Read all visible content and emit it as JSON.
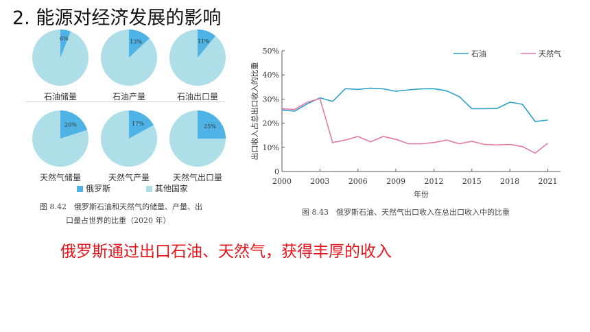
{
  "page_title": "2. 能源对经济发展的影响",
  "conclusion": "俄罗斯通过出口石油、天然气，获得丰厚的收入",
  "colors": {
    "russia": "#4eb3e4",
    "others": "#aedfe8",
    "oil": "#2aa0c8",
    "gas": "#e477a6",
    "conclusion_text": "#e8141c"
  },
  "pie_legend": {
    "russia": "俄罗斯",
    "others": "其他国家"
  },
  "pie_caption": {
    "line1": "图 8.42　俄罗斯石油和天然气的储量、产量、出",
    "line2": "口量占世界的比重（2020 年）"
  },
  "line_caption": "图 8.43　俄罗斯石油、天然气出口收入在总出口收入中的比重",
  "chart_data": [
    {
      "type": "pie",
      "label": "石油储量",
      "values": [
        6,
        94
      ],
      "slice_labels": [
        "6%",
        ""
      ]
    },
    {
      "type": "pie",
      "label": "石油产量",
      "values": [
        13,
        87
      ],
      "slice_labels": [
        "13%",
        ""
      ]
    },
    {
      "type": "pie",
      "label": "石油出口量",
      "values": [
        11,
        89
      ],
      "slice_labels": [
        "11%",
        ""
      ]
    },
    {
      "type": "pie",
      "label": "天然气储量",
      "values": [
        20,
        80
      ],
      "slice_labels": [
        "20%",
        ""
      ]
    },
    {
      "type": "pie",
      "label": "天然气产量",
      "values": [
        17,
        83
      ],
      "slice_labels": [
        "17%",
        ""
      ]
    },
    {
      "type": "pie",
      "label": "天然气出口量",
      "values": [
        25,
        75
      ],
      "slice_labels": [
        "25%",
        ""
      ]
    },
    {
      "type": "line",
      "xlabel": "年份",
      "ylabel": "出口收入占总出口收入的比重",
      "xlim": [
        2000,
        2022
      ],
      "ylim": [
        0,
        50
      ],
      "xticks": [
        2000,
        2003,
        2006,
        2009,
        2012,
        2015,
        2018,
        2021
      ],
      "yticks": [
        0,
        10,
        20,
        30,
        40,
        50
      ],
      "ytick_labels": [
        "0",
        "10%",
        "20%",
        "30%",
        "40%",
        "50%"
      ],
      "legend_position": "top-right",
      "x": [
        2000,
        2001,
        2002,
        2003,
        2004,
        2005,
        2006,
        2007,
        2008,
        2009,
        2010,
        2011,
        2012,
        2013,
        2014,
        2015,
        2016,
        2017,
        2018,
        2019,
        2020,
        2021
      ],
      "series": [
        {
          "name": "石油",
          "values": [
            25.5,
            25,
            28,
            30.5,
            29,
            34.3,
            34,
            34.5,
            34.2,
            33.2,
            33.8,
            34.2,
            34.3,
            33.4,
            31,
            26,
            26,
            26.1,
            28.7,
            27.8,
            20.7,
            21.3
          ]
        },
        {
          "name": "天然气",
          "values": [
            26,
            25.7,
            28.7,
            30.2,
            12,
            13,
            14.5,
            12.3,
            14.5,
            13.3,
            11.5,
            11.5,
            12,
            13,
            11.5,
            12.5,
            11.2,
            11,
            11.2,
            10.3,
            7.6,
            11.7
          ]
        }
      ]
    }
  ]
}
